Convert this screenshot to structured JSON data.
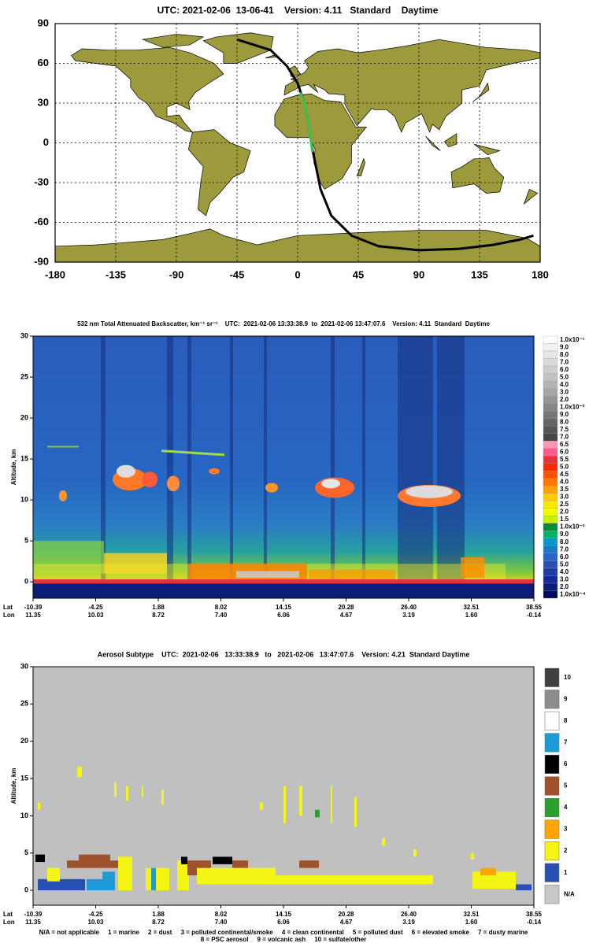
{
  "map": {
    "title": "UTC: 2021-02-06  13-06-41    Version: 4.11   Standard    Daytime",
    "xlim": [
      -180,
      180
    ],
    "ylim": [
      -90,
      90
    ],
    "xticks": [
      -180,
      -135,
      -90,
      -45,
      0,
      45,
      90,
      135,
      180
    ],
    "yticks": [
      90,
      60,
      30,
      0,
      -30,
      -60,
      -90
    ]
  },
  "backscatter": {
    "title": "532 nm Total Attenuated Backscatter, km⁻¹ sr⁻¹    UTC:  2021-02-06 13:33:38.9  to  2021-02-06 13:47:07.6    Version: 4.11  Standard  Daytime",
    "y_label": "Altitude, km",
    "ylim": [
      -2,
      30
    ],
    "yticks": [
      0,
      5,
      10,
      15,
      20,
      25,
      30
    ],
    "lat_label": "Lat",
    "lon_label": "Lon",
    "lat": [
      "-10.39",
      "-4.25",
      "1.88",
      "8.02",
      "14.15",
      "20.28",
      "26.40",
      "32.51",
      "38.55"
    ],
    "lon": [
      "11.35",
      "10.03",
      "8.72",
      "7.40",
      "6.06",
      "4.67",
      "3.19",
      "1.60",
      "-0.14"
    ],
    "colorbar": [
      {
        "label": "1.0x10⁻¹",
        "color": "#ffffff"
      },
      {
        "label": "9.0",
        "color": "#f2f2f2"
      },
      {
        "label": "8.0",
        "color": "#e6e6e6"
      },
      {
        "label": "7.0",
        "color": "#dadada"
      },
      {
        "label": "6.0",
        "color": "#cecece"
      },
      {
        "label": "5.0",
        "color": "#c2c2c2"
      },
      {
        "label": "4.0",
        "color": "#b4b4b4"
      },
      {
        "label": "3.0",
        "color": "#a6a6a6"
      },
      {
        "label": "2.0",
        "color": "#969696"
      },
      {
        "label": "1.0x10⁻²",
        "color": "#868686"
      },
      {
        "label": "9.0",
        "color": "#767676"
      },
      {
        "label": "8.0",
        "color": "#666666"
      },
      {
        "label": "7.5",
        "color": "#555555"
      },
      {
        "label": "7.0",
        "color": "#464646"
      },
      {
        "label": "6.5",
        "color": "#ff96b4"
      },
      {
        "label": "6.0",
        "color": "#ff5a8c"
      },
      {
        "label": "5.5",
        "color": "#e6323c"
      },
      {
        "label": "5.0",
        "color": "#ff2800"
      },
      {
        "label": "4.5",
        "color": "#ff5000"
      },
      {
        "label": "4.0",
        "color": "#ff7800"
      },
      {
        "label": "3.5",
        "color": "#ffa000"
      },
      {
        "label": "3.0",
        "color": "#ffc800"
      },
      {
        "label": "2.5",
        "color": "#ffe600"
      },
      {
        "label": "2.0",
        "color": "#f0ff00"
      },
      {
        "label": "1.5",
        "color": "#c8f000"
      },
      {
        "label": "1.0x10⁻³",
        "color": "#008c3c"
      },
      {
        "label": "9.0",
        "color": "#00b464"
      },
      {
        "label": "8.0",
        "color": "#0a96c8"
      },
      {
        "label": "7.0",
        "color": "#1e78c8"
      },
      {
        "label": "6.0",
        "color": "#2864c8"
      },
      {
        "label": "5.0",
        "color": "#2850b4"
      },
      {
        "label": "4.0",
        "color": "#1e3ca0"
      },
      {
        "label": "3.0",
        "color": "#142896"
      },
      {
        "label": "2.0",
        "color": "#0a1e78"
      },
      {
        "label": "1.0x10⁻⁴",
        "color": "#000a5a"
      }
    ]
  },
  "subtype": {
    "title": "Aerosol Subtype    UTC:  2021-02-06   13:33:38.9   to   2021-02-06   13:47:07.6    Version: 4.21  Standard Daytime",
    "y_label": "Altitude, km",
    "ylim": [
      -2,
      30
    ],
    "yticks": [
      0,
      5,
      10,
      15,
      20,
      25,
      30
    ],
    "lat_label": "Lat",
    "lon_label": "Lon",
    "lat": [
      "-10.39",
      "-4.25",
      "1.88",
      "8.02",
      "14.15",
      "20.28",
      "26.40",
      "32.51",
      "38.55"
    ],
    "lon": [
      "11.35",
      "10.03",
      "8.72",
      "7.40",
      "6.06",
      "4.67",
      "3.19",
      "1.60",
      "-0.14"
    ],
    "legend": [
      {
        "label": "10",
        "color": "#404040"
      },
      {
        "label": "9",
        "color": "#8c8c8c"
      },
      {
        "label": "8",
        "color": "#ffffff"
      },
      {
        "label": "7",
        "color": "#1e9bd7"
      },
      {
        "label": "6",
        "color": "#000000"
      },
      {
        "label": "5",
        "color": "#a0522d"
      },
      {
        "label": "4",
        "color": "#2ca02c"
      },
      {
        "label": "3",
        "color": "#ffa500"
      },
      {
        "label": "2",
        "color": "#f5f514"
      },
      {
        "label": "1",
        "color": "#2850b4"
      },
      {
        "label": "N/A",
        "color": "#c8c8c8"
      }
    ],
    "footnote": [
      "N/A = not applicable     1 = marine     2 = dust     3 = polluted continental/smoke     4 = clean continental     5 = polluted dust     6 = elevated smoke     7 = dusty marine",
      "8 = PSC aerosol     9 = volcanic ash     10 = sulfate/other"
    ]
  }
}
